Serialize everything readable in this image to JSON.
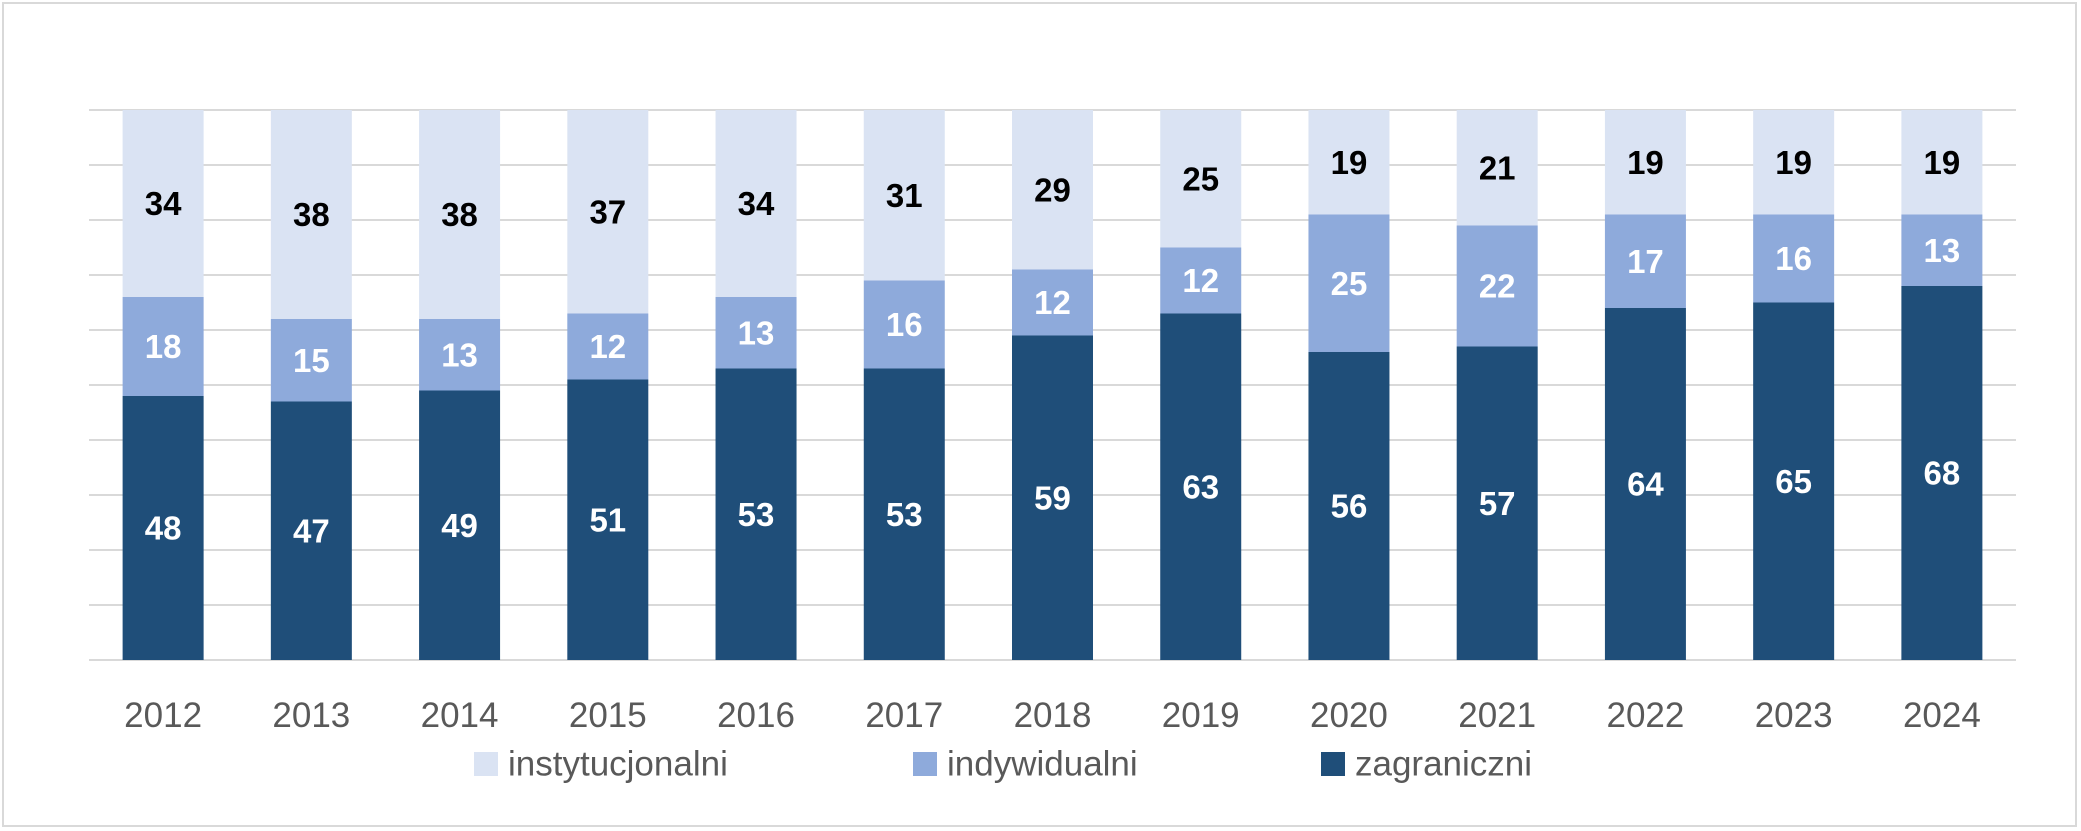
{
  "chart_data": {
    "type": "bar",
    "stacked": true,
    "categories": [
      "2012",
      "2013",
      "2014",
      "2015",
      "2016",
      "2017",
      "2018",
      "2019",
      "2020",
      "2021",
      "2022",
      "2023",
      "2024"
    ],
    "series": [
      {
        "name": "zagraniczni",
        "color": "#1f4e79",
        "label_color": "#ffffff",
        "values": [
          48,
          47,
          49,
          51,
          53,
          53,
          59,
          63,
          56,
          57,
          64,
          65,
          68
        ]
      },
      {
        "name": "indywidualni",
        "color": "#8eaadb",
        "label_color": "#ffffff",
        "values": [
          18,
          15,
          13,
          12,
          13,
          16,
          12,
          12,
          25,
          22,
          17,
          16,
          13
        ]
      },
      {
        "name": "instytucjonalni",
        "color": "#dae3f3",
        "label_color": "#000000",
        "values": [
          34,
          38,
          38,
          37,
          34,
          31,
          29,
          25,
          19,
          21,
          19,
          19,
          19
        ]
      }
    ],
    "legend_order": [
      "instytucjonalni",
      "indywidualni",
      "zagraniczni"
    ],
    "ylim": [
      0,
      100
    ],
    "grid": true,
    "legend_position": "bottom",
    "title": "",
    "xlabel": "",
    "ylabel": ""
  }
}
